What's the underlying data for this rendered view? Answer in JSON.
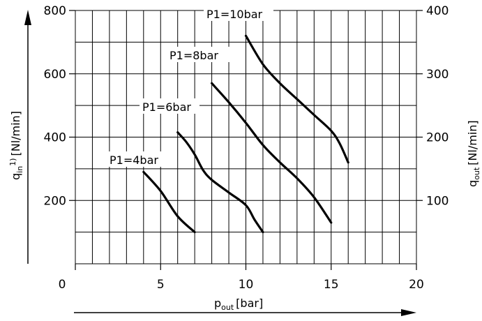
{
  "chart_data": {
    "type": "line",
    "x": {
      "label_main": "p",
      "label_sub": "out",
      "label_unit": "[bar]",
      "range": [
        0,
        20
      ],
      "ticks": [
        0,
        5,
        10,
        15,
        20
      ],
      "tick_labels": [
        "0",
        "5",
        "10",
        "15",
        "20"
      ],
      "grid_step": 1
    },
    "y_left": {
      "label_main": "q",
      "label_sub": "in",
      "label_sup": "1)",
      "label_unit": "[Nl/min]",
      "range": [
        0,
        800
      ],
      "ticks": [
        200,
        400,
        600,
        800
      ],
      "tick_labels": [
        "200",
        "400",
        "600",
        "800"
      ],
      "grid_step": 100
    },
    "y_right": {
      "label_main": "q",
      "label_sub": "out",
      "label_unit": "[Nl/min]",
      "range": [
        0,
        400
      ],
      "ticks": [
        100,
        200,
        300,
        400
      ],
      "tick_labels": [
        "100",
        "200",
        "300",
        "400"
      ]
    },
    "grid": true,
    "series": [
      {
        "name": "P1=4bar",
        "axis": "y_left",
        "points": [
          [
            4,
            290
          ],
          [
            5,
            230
          ],
          [
            6,
            150
          ],
          [
            7,
            100
          ]
        ]
      },
      {
        "name": "P1=6bar",
        "axis": "y_left",
        "points": [
          [
            6,
            415
          ],
          [
            6.5,
            385
          ],
          [
            7,
            345
          ],
          [
            7.5,
            295
          ],
          [
            8,
            265
          ],
          [
            9,
            225
          ],
          [
            10,
            185
          ],
          [
            10.5,
            140
          ],
          [
            11,
            100
          ]
        ]
      },
      {
        "name": "P1=8bar",
        "axis": "y_left",
        "points": [
          [
            8,
            570
          ],
          [
            9,
            510
          ],
          [
            10,
            445
          ],
          [
            11,
            375
          ],
          [
            12,
            320
          ],
          [
            13,
            270
          ],
          [
            14,
            210
          ],
          [
            15,
            130
          ]
        ]
      },
      {
        "name": "P1=10bar",
        "axis": "y_left",
        "points": [
          [
            10,
            720
          ],
          [
            11,
            630
          ],
          [
            12,
            570
          ],
          [
            13,
            520
          ],
          [
            14,
            470
          ],
          [
            15,
            420
          ],
          [
            15.5,
            380
          ],
          [
            16,
            320
          ]
        ]
      }
    ]
  }
}
